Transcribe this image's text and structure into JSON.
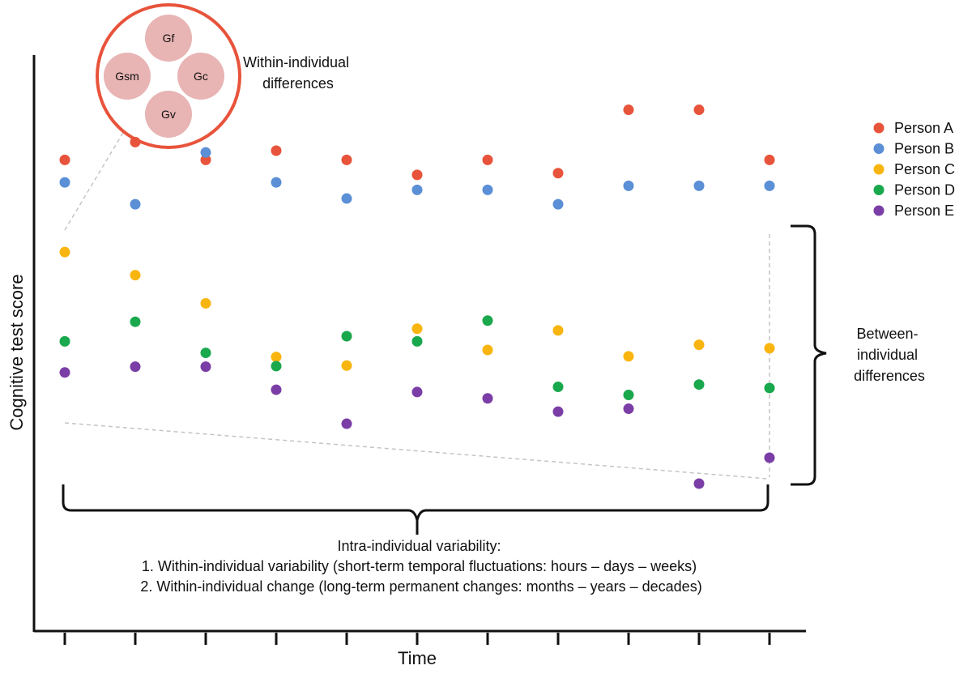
{
  "chart_data": {
    "type": "scatter",
    "xlabel": "Time",
    "ylabel": "Cognitive test score",
    "x": [
      1,
      2,
      3,
      4,
      5,
      6,
      7,
      8,
      9,
      10,
      11
    ],
    "series": [
      {
        "name": "Person A",
        "color": "#e8533b",
        "values": [
          81.8,
          84.9,
          81.8,
          83.4,
          81.8,
          79.2,
          81.8,
          79.5,
          90.5,
          90.5,
          81.8
        ]
      },
      {
        "name": "Person B",
        "color": "#5b8fd6",
        "values": [
          77.9,
          74.1,
          83.1,
          77.9,
          75.1,
          76.6,
          76.6,
          74.1,
          77.3,
          77.3,
          77.3
        ]
      },
      {
        "name": "Person C",
        "color": "#f9b50f",
        "values": [
          65.8,
          61.8,
          56.9,
          47.6,
          46.1,
          52.5,
          48.8,
          52.2,
          47.7,
          49.7,
          49.1
        ]
      },
      {
        "name": "Person D",
        "color": "#19a84c",
        "values": [
          50.3,
          53.7,
          48.3,
          46.0,
          51.2,
          50.3,
          53.9,
          42.4,
          41.0,
          42.8,
          42.2
        ]
      },
      {
        "name": "Person E",
        "color": "#7a3ea6",
        "values": [
          44.9,
          45.9,
          45.9,
          41.9,
          36.0,
          41.5,
          40.4,
          38.1,
          38.6,
          25.6,
          30.1
        ]
      }
    ],
    "ylim": [
      0,
      100
    ],
    "grid": false,
    "legend": "top-right"
  },
  "inset": {
    "label_lines": [
      "Within-individual",
      "differences"
    ],
    "abilities": [
      "Gf",
      "Gsm",
      "Gc",
      "Gv"
    ],
    "ring_color": "#e8533b",
    "circle_color": "#e8b4b4"
  },
  "between_label_lines": [
    "Between-",
    "individual",
    "differences"
  ],
  "intra_label_lines": [
    "Intra-individual variability:",
    "1. Within-individual variability (short-term temporal fluctuations: hours – days – weeks)",
    "2. Within-individual change (long-term permanent changes: months – years – decades)"
  ]
}
